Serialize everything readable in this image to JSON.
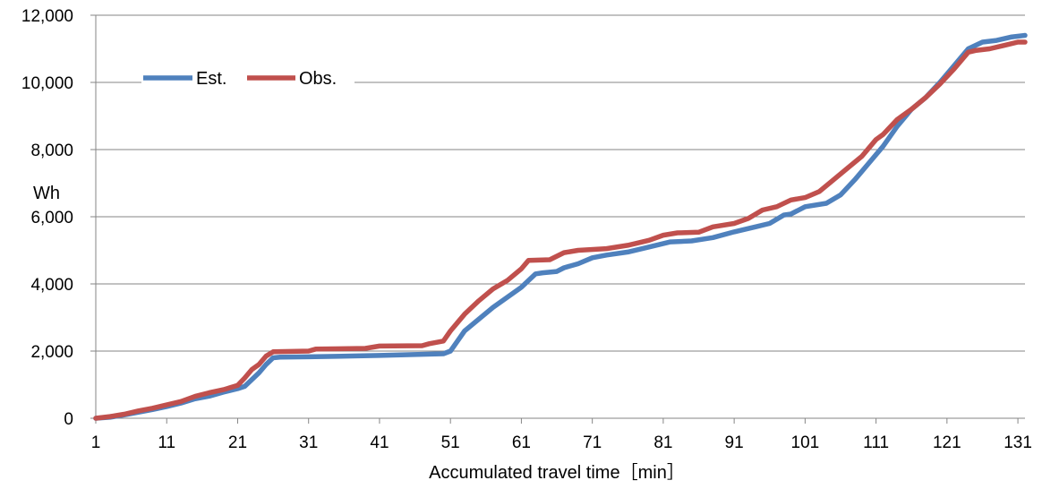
{
  "chart_data": {
    "type": "line",
    "xlabel": "Accumulated travel time［min］",
    "ylabel": "Wh",
    "xlim": [
      1,
      132
    ],
    "ylim": [
      0,
      12000
    ],
    "x_ticks": [
      1,
      11,
      21,
      31,
      41,
      51,
      61,
      71,
      81,
      91,
      101,
      111,
      121,
      131
    ],
    "x_tick_labels": [
      "1",
      "11",
      "21",
      "31",
      "41",
      "51",
      "61",
      "71",
      "81",
      "91",
      "101",
      "111",
      "121",
      "131"
    ],
    "y_ticks": [
      0,
      2000,
      4000,
      6000,
      8000,
      10000,
      12000
    ],
    "y_tick_labels": [
      "0",
      "2,000",
      "4,000",
      "6,000",
      "8,000",
      "10,000",
      "12,000"
    ],
    "grid": "horizontal",
    "legend": "top-left",
    "series": [
      {
        "name": "Est.",
        "color": "#4F81BD",
        "points": [
          [
            1,
            0
          ],
          [
            3,
            30
          ],
          [
            5,
            100
          ],
          [
            7,
            180
          ],
          [
            9,
            260
          ],
          [
            11,
            350
          ],
          [
            13,
            450
          ],
          [
            15,
            580
          ],
          [
            17,
            660
          ],
          [
            19,
            780
          ],
          [
            21,
            880
          ],
          [
            22,
            950
          ],
          [
            23,
            1150
          ],
          [
            24,
            1350
          ],
          [
            25,
            1600
          ],
          [
            26,
            1800
          ],
          [
            27,
            1820
          ],
          [
            31,
            1830
          ],
          [
            41,
            1870
          ],
          [
            50,
            1920
          ],
          [
            51,
            2000
          ],
          [
            53,
            2600
          ],
          [
            57,
            3300
          ],
          [
            61,
            3900
          ],
          [
            62,
            4100
          ],
          [
            63,
            4300
          ],
          [
            64,
            4330
          ],
          [
            66,
            4370
          ],
          [
            67,
            4480
          ],
          [
            69,
            4600
          ],
          [
            71,
            4780
          ],
          [
            73,
            4860
          ],
          [
            76,
            4950
          ],
          [
            79,
            5100
          ],
          [
            82,
            5250
          ],
          [
            85,
            5280
          ],
          [
            88,
            5380
          ],
          [
            91,
            5550
          ],
          [
            94,
            5700
          ],
          [
            96,
            5800
          ],
          [
            98,
            6050
          ],
          [
            99,
            6080
          ],
          [
            101,
            6300
          ],
          [
            104,
            6400
          ],
          [
            106,
            6650
          ],
          [
            108,
            7100
          ],
          [
            110,
            7600
          ],
          [
            112,
            8100
          ],
          [
            114,
            8700
          ],
          [
            116,
            9200
          ],
          [
            118,
            9550
          ],
          [
            120,
            10000
          ],
          [
            122,
            10500
          ],
          [
            124,
            11000
          ],
          [
            126,
            11200
          ],
          [
            128,
            11250
          ],
          [
            130,
            11350
          ],
          [
            132,
            11400
          ]
        ]
      },
      {
        "name": "Obs.",
        "color": "#C0504D",
        "points": [
          [
            1,
            0
          ],
          [
            3,
            50
          ],
          [
            5,
            120
          ],
          [
            7,
            220
          ],
          [
            9,
            300
          ],
          [
            11,
            400
          ],
          [
            13,
            500
          ],
          [
            15,
            650
          ],
          [
            17,
            760
          ],
          [
            19,
            850
          ],
          [
            21,
            980
          ],
          [
            22,
            1200
          ],
          [
            23,
            1450
          ],
          [
            24,
            1600
          ],
          [
            25,
            1850
          ],
          [
            26,
            1980
          ],
          [
            31,
            2000
          ],
          [
            32,
            2060
          ],
          [
            39,
            2080
          ],
          [
            41,
            2150
          ],
          [
            47,
            2160
          ],
          [
            48,
            2220
          ],
          [
            50,
            2300
          ],
          [
            51,
            2600
          ],
          [
            53,
            3100
          ],
          [
            55,
            3500
          ],
          [
            57,
            3850
          ],
          [
            59,
            4100
          ],
          [
            61,
            4450
          ],
          [
            62,
            4700
          ],
          [
            65,
            4720
          ],
          [
            67,
            4930
          ],
          [
            69,
            5000
          ],
          [
            73,
            5050
          ],
          [
            76,
            5150
          ],
          [
            79,
            5300
          ],
          [
            81,
            5450
          ],
          [
            83,
            5520
          ],
          [
            86,
            5540
          ],
          [
            88,
            5700
          ],
          [
            91,
            5800
          ],
          [
            93,
            5950
          ],
          [
            95,
            6200
          ],
          [
            97,
            6300
          ],
          [
            99,
            6500
          ],
          [
            101,
            6570
          ],
          [
            103,
            6750
          ],
          [
            105,
            7100
          ],
          [
            107,
            7450
          ],
          [
            109,
            7800
          ],
          [
            111,
            8300
          ],
          [
            112,
            8450
          ],
          [
            114,
            8900
          ],
          [
            116,
            9200
          ],
          [
            118,
            9550
          ],
          [
            120,
            9950
          ],
          [
            122,
            10400
          ],
          [
            124,
            10900
          ],
          [
            125,
            10950
          ],
          [
            127,
            11000
          ],
          [
            129,
            11100
          ],
          [
            131,
            11200
          ],
          [
            132,
            11200
          ]
        ]
      }
    ]
  }
}
